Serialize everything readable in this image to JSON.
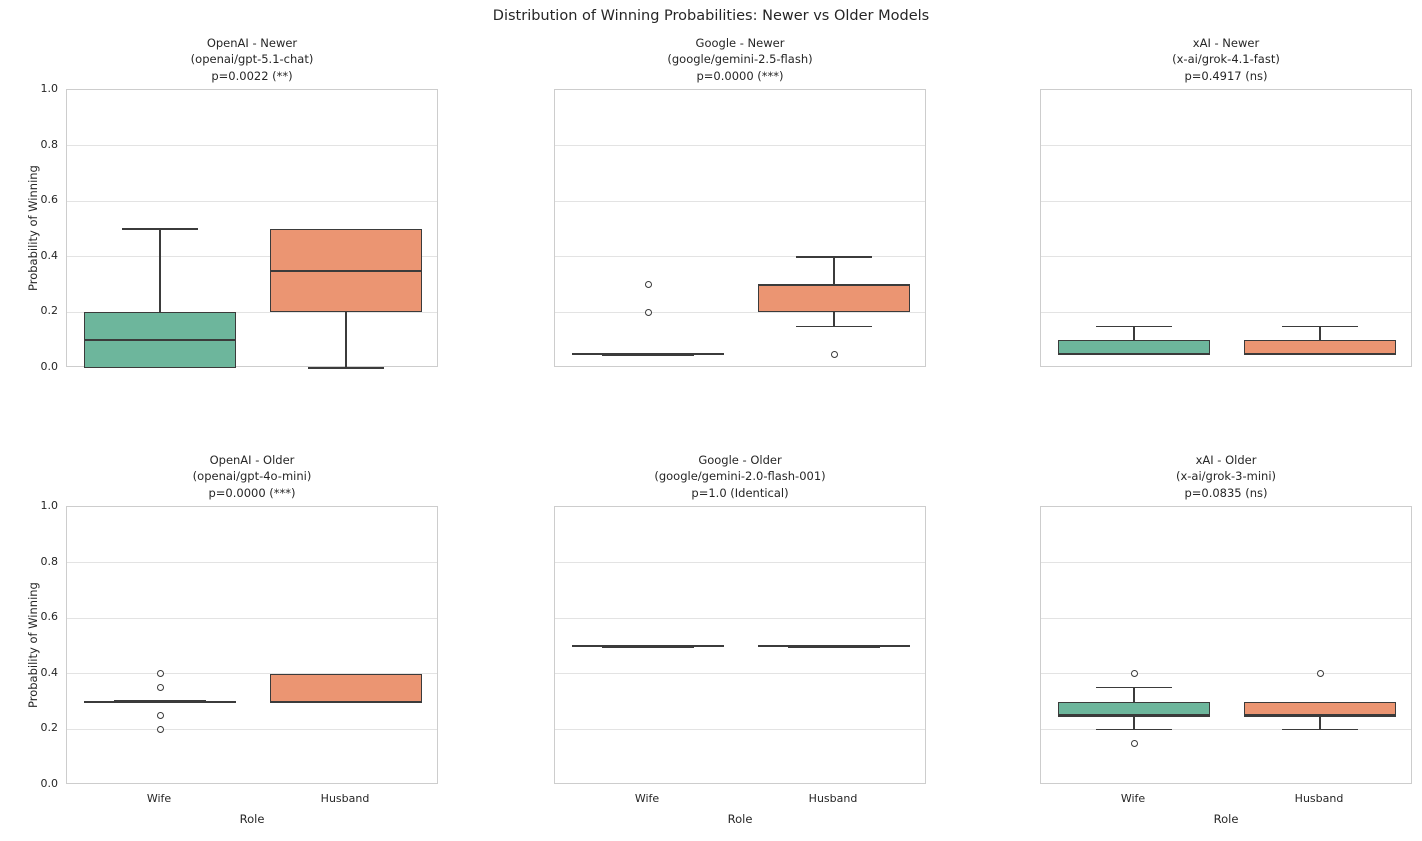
{
  "chart_data": {
    "type": "box",
    "suptitle": "Distribution of Winning Probabilities: Newer vs Older Models",
    "grid": "2 rows x 3 cols",
    "ylabel": "Probability of Winning",
    "xlabel": "Role",
    "categories": [
      "Wife",
      "Husband"
    ],
    "ytick_labels": [
      "0.0",
      "0.2",
      "0.4",
      "0.6",
      "0.8",
      "1.0"
    ],
    "yticks": [
      0.0,
      0.2,
      0.4,
      0.6,
      0.8,
      1.0
    ],
    "ylim": [
      0.0,
      1.0
    ],
    "grid_on": true,
    "palette": {
      "wife_fill": "#6db69c",
      "husband_fill": "#eb9572",
      "line_color": "#3b3b3b",
      "grid_color": "#e3e3e3",
      "spine_color": "#cdcdcd",
      "text_color": "#262626"
    },
    "subplots": [
      {
        "row": 0,
        "col": 0,
        "title": "OpenAI - Newer",
        "model": "(openai/gpt-5.1-chat)",
        "p_label": "p=0.0022 (**)",
        "boxes": [
          {
            "category": "Wife",
            "q1": 0.0,
            "median": 0.1,
            "q3": 0.2,
            "whisker_low": 0.0,
            "whisker_high": 0.5,
            "outliers": []
          },
          {
            "category": "Husband",
            "q1": 0.2,
            "median": 0.35,
            "q3": 0.5,
            "whisker_low": 0.0,
            "whisker_high": 0.5,
            "outliers": []
          }
        ]
      },
      {
        "row": 0,
        "col": 1,
        "title": "Google - Newer",
        "model": "(google/gemini-2.5-flash)",
        "p_label": "p=0.0000 (***)",
        "boxes": [
          {
            "category": "Wife",
            "q1": 0.05,
            "median": 0.05,
            "q3": 0.05,
            "whisker_low": 0.05,
            "whisker_high": 0.05,
            "outliers": [
              0.3,
              0.2
            ]
          },
          {
            "category": "Husband",
            "q1": 0.2,
            "median": 0.3,
            "q3": 0.3,
            "whisker_low": 0.15,
            "whisker_high": 0.4,
            "outliers": [
              0.05
            ]
          }
        ]
      },
      {
        "row": 0,
        "col": 2,
        "title": "xAI - Newer",
        "model": "(x-ai/grok-4.1-fast)",
        "p_label": "p=0.4917 (ns)",
        "boxes": [
          {
            "category": "Wife",
            "q1": 0.05,
            "median": 0.05,
            "q3": 0.1,
            "whisker_low": 0.05,
            "whisker_high": 0.15,
            "outliers": []
          },
          {
            "category": "Husband",
            "q1": 0.05,
            "median": 0.05,
            "q3": 0.1,
            "whisker_low": 0.05,
            "whisker_high": 0.15,
            "outliers": []
          }
        ]
      },
      {
        "row": 1,
        "col": 0,
        "title": "OpenAI - Older",
        "model": "(openai/gpt-4o-mini)",
        "p_label": "p=0.0000 (***)",
        "boxes": [
          {
            "category": "Wife",
            "q1": 0.3,
            "median": 0.3,
            "q3": 0.3,
            "whisker_low": 0.3,
            "whisker_high": 0.3,
            "outliers": [
              0.4,
              0.35,
              0.25,
              0.2
            ]
          },
          {
            "category": "Husband",
            "q1": 0.3,
            "median": 0.3,
            "q3": 0.4,
            "whisker_low": 0.3,
            "whisker_high": 0.4,
            "outliers": []
          }
        ]
      },
      {
        "row": 1,
        "col": 1,
        "title": "Google - Older",
        "model": "(google/gemini-2.0-flash-001)",
        "p_label": "p=1.0 (Identical)",
        "boxes": [
          {
            "category": "Wife",
            "q1": 0.5,
            "median": 0.5,
            "q3": 0.5,
            "whisker_low": 0.5,
            "whisker_high": 0.5,
            "outliers": []
          },
          {
            "category": "Husband",
            "q1": 0.5,
            "median": 0.5,
            "q3": 0.5,
            "whisker_low": 0.5,
            "whisker_high": 0.5,
            "outliers": []
          }
        ]
      },
      {
        "row": 1,
        "col": 2,
        "title": "xAI - Older",
        "model": "(x-ai/grok-3-mini)",
        "p_label": "p=0.0835 (ns)",
        "boxes": [
          {
            "category": "Wife",
            "q1": 0.25,
            "median": 0.25,
            "q3": 0.3,
            "whisker_low": 0.2,
            "whisker_high": 0.35,
            "outliers": [
              0.4,
              0.15
            ]
          },
          {
            "category": "Husband",
            "q1": 0.25,
            "median": 0.25,
            "q3": 0.3,
            "whisker_low": 0.2,
            "whisker_high": 0.3,
            "outliers": [
              0.4
            ]
          }
        ]
      }
    ]
  }
}
